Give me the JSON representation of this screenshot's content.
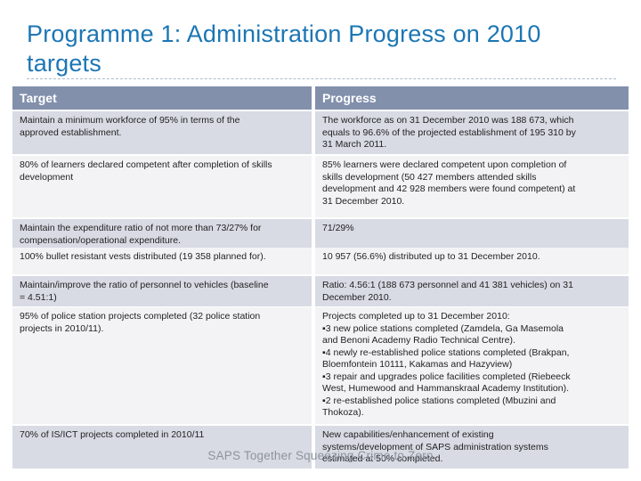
{
  "slide": {
    "title": "Programme 1: Administration Progress on 2010 targets",
    "footer": "SAPS Together Squeezing Crime to Zero"
  },
  "table": {
    "headers": {
      "target": "Target",
      "progress": "Progress"
    },
    "rows": [
      {
        "target": "Maintain a minimum workforce of 95% in terms of the\napproved establishment.",
        "progress": "The workforce as on 31 December 2010 was 188 673, which\nequals to 96.6% of the projected establishment of 195 310 by\n31 March 2011."
      },
      {
        "target": "80% of learners declared competent after completion of skills\ndevelopment",
        "progress": "85% learners were declared competent upon completion of\nskills development (50 427 members attended skills\ndevelopment and 42 928 members were found competent) at\n31 December 2010."
      },
      {
        "target": "Maintain the expenditure ratio of not more than 73/27% for\ncompensation/operational expenditure.",
        "progress": "71/29%"
      },
      {
        "target": "100% bullet resistant vests distributed (19 358 planned for).",
        "progress": "10 957 (56.6%) distributed up to 31 December 2010."
      },
      {
        "target": "Maintain/improve the ratio of personnel to vehicles (baseline\n= 4.51:1)",
        "progress": "Ratio: 4.56:1 (188 673 personnel and 41 381 vehicles) on 31\nDecember 2010."
      },
      {
        "target": "95% of police station projects completed (32 police station\nprojects in 2010/11).",
        "progress": "Projects completed up to 31 December 2010:\n▪3 new police stations completed (Zamdela, Ga Masemola\nand Benoni Academy Radio Technical Centre).\n▪4 newly re-established police stations completed (Brakpan,\nBloemfontein 10111, Kakamas and Hazyview)\n▪3 repair and upgrades police facilities completed (Riebeeck\nWest, Humewood and Hammanskraal Academy Institution).\n▪2 re-established police stations completed (Mbuzini and\nThokoza)."
      },
      {
        "target": "70% of IS/ICT projects completed in 2010/11",
        "progress": "New capabilities/enhancement of existing\nsystems/development of SAPS administration systems\nestimated at 50% completed."
      }
    ]
  },
  "colors": {
    "title": "#1C76B4",
    "rule": "#A9BCCB",
    "header_bg": "#8290AC",
    "band_a": "#D8DBE4",
    "band_b": "#F3F3F6",
    "footer_text": "#8D939C"
  }
}
